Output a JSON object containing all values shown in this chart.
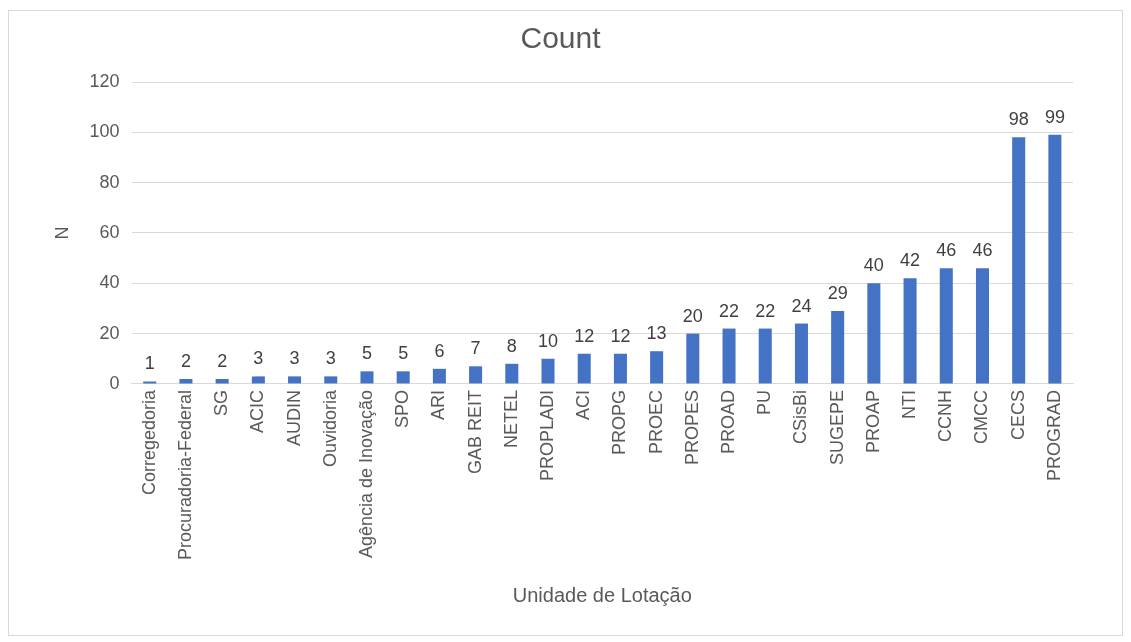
{
  "chart_data": {
    "type": "bar",
    "title": "Count",
    "xlabel": "Unidade de Lotação",
    "ylabel": "N",
    "categories": [
      "Corregedoria",
      "Procuradoria-Federal",
      "SG",
      "ACIC",
      "AUDIN",
      "Ouvidoria",
      "Agência de Inovação",
      "SPO",
      "ARI",
      "GAB REIT",
      "NETEL",
      "PROPLADI",
      "ACI",
      "PROPG",
      "PROEC",
      "PROPES",
      "PROAD",
      "PU",
      "CSisBi",
      "SUGEPE",
      "PROAP",
      "NTI",
      "CCNH",
      "CMCC",
      "CECS",
      "PROGRAD"
    ],
    "values": [
      1,
      2,
      2,
      3,
      3,
      3,
      5,
      5,
      6,
      7,
      8,
      10,
      12,
      12,
      13,
      20,
      22,
      22,
      24,
      29,
      40,
      42,
      46,
      46,
      98,
      99
    ],
    "color": "#4472c4",
    "ylim": [
      0,
      120
    ],
    "yticks": [
      0,
      20,
      40,
      60,
      80,
      100,
      120
    ],
    "grid": "y",
    "data_labels": true,
    "legend": false
  }
}
